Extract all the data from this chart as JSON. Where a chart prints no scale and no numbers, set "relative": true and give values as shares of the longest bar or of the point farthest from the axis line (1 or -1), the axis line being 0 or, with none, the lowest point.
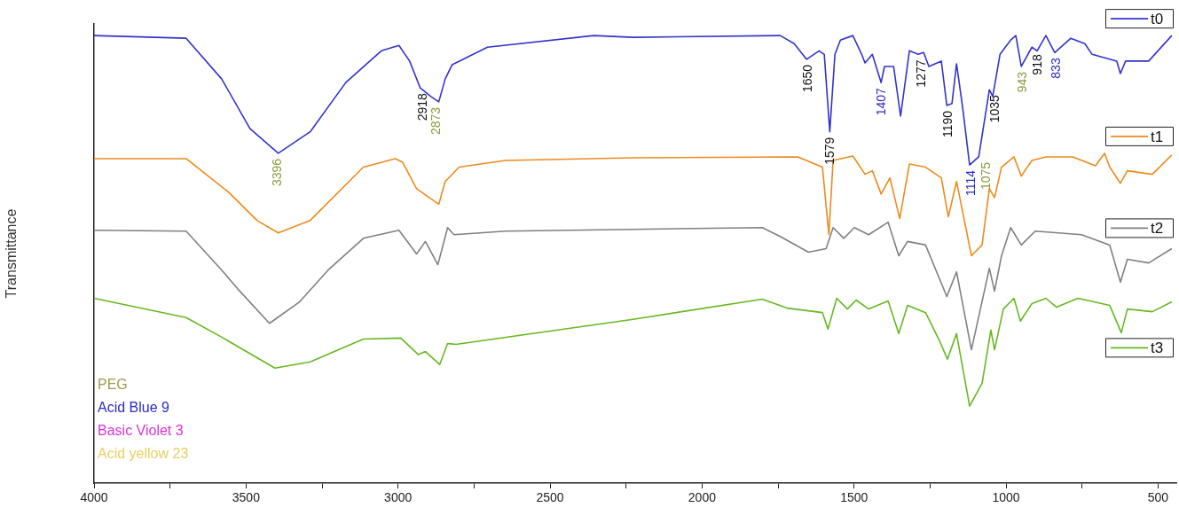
{
  "chart_data": {
    "type": "line",
    "relative": true,
    "ylabel": "Transmittance",
    "xlim": [
      4000,
      440
    ],
    "xticks": [
      4000,
      {
        "value": 3750,
        "label": null
      },
      3500,
      {
        "value": 3250,
        "label": null
      },
      3000,
      {
        "value": 2750,
        "label": null
      },
      2500,
      {
        "value": 2250,
        "label": null
      },
      2000,
      {
        "value": 1750,
        "label": null
      },
      1500,
      {
        "value": 1250,
        "label": null
      },
      1000,
      {
        "value": 750,
        "label": null
      },
      500
    ],
    "legend": "right",
    "marker": "none",
    "line_style": "solid",
    "grid": false,
    "series": [
      {
        "name": "t0",
        "color": "#3333cc",
        "x": [
          4000,
          3697,
          3580,
          3487,
          3394,
          3289,
          3172,
          3055,
          2997,
          2962,
          2927,
          2892,
          2866,
          2845,
          2822,
          2706,
          2356,
          2227,
          1743,
          1697,
          1656,
          1615,
          1598,
          1580,
          1563,
          1545,
          1504,
          1475,
          1464,
          1440,
          1411,
          1400,
          1370,
          1347,
          1318,
          1289,
          1271,
          1254,
          1213,
          1195,
          1178,
          1163,
          1143,
          1120,
          1090,
          1055,
          1044,
          1020,
          985,
          968,
          950,
          915,
          898,
          869,
          840,
          787,
          741,
          717,
          636,
          624,
          607,
          531,
          455
        ],
        "values": [
          1.0,
          0.994,
          0.903,
          0.792,
          0.737,
          0.785,
          0.895,
          0.966,
          0.978,
          0.943,
          0.883,
          0.864,
          0.852,
          0.903,
          0.935,
          0.974,
          1.0,
          0.996,
          1.0,
          0.982,
          0.947,
          0.966,
          0.958,
          0.785,
          0.958,
          0.99,
          1.0,
          0.958,
          0.939,
          0.958,
          0.895,
          0.931,
          0.931,
          0.82,
          0.966,
          0.958,
          0.962,
          0.931,
          0.943,
          0.844,
          0.848,
          0.937,
          0.84,
          0.711,
          0.729,
          0.879,
          0.864,
          0.958,
          0.99,
          1.0,
          0.931,
          0.974,
          0.966,
          1.0,
          0.962,
          0.994,
          0.982,
          0.958,
          0.943,
          0.915,
          0.943,
          0.943,
          1.0
        ]
      },
      {
        "name": "t1",
        "color": "#ee8a1c",
        "x": [
          4000,
          3697,
          3557,
          3464,
          3394,
          3289,
          3114,
          3009,
          2985,
          2939,
          2866,
          2845,
          2799,
          2647,
          2227,
          1685,
          1604,
          1583,
          1569,
          1504,
          1464,
          1440,
          1411,
          1382,
          1350,
          1318,
          1265,
          1213,
          1190,
          1163,
          1114,
          1079,
          1055,
          1038,
          1015,
          974,
          950,
          915,
          869,
          781,
          706,
          676,
          659,
          624,
          601,
          519,
          455
        ],
        "values": [
          0.725,
          0.725,
          0.65,
          0.587,
          0.559,
          0.587,
          0.706,
          0.725,
          0.717,
          0.658,
          0.623,
          0.674,
          0.706,
          0.721,
          0.727,
          0.729,
          0.706,
          0.555,
          0.721,
          0.731,
          0.69,
          0.698,
          0.646,
          0.682,
          0.591,
          0.713,
          0.706,
          0.682,
          0.595,
          0.674,
          0.508,
          0.532,
          0.658,
          0.638,
          0.706,
          0.729,
          0.686,
          0.721,
          0.729,
          0.729,
          0.709,
          0.737,
          0.706,
          0.67,
          0.698,
          0.69,
          0.733
        ]
      },
      {
        "name": "t2",
        "color": "#808080",
        "x": [
          4000,
          3697,
          3580,
          3522,
          3423,
          3324,
          3230,
          3114,
          2997,
          2939,
          2910,
          2869,
          2837,
          2816,
          2647,
          2227,
          1802,
          1743,
          1650,
          1592,
          1569,
          1534,
          1499,
          1452,
          1388,
          1353,
          1324,
          1265,
          1195,
          1163,
          1114,
          1055,
          1038,
          1015,
          985,
          950,
          904,
          752,
          659,
          624,
          601,
          531,
          455
        ],
        "values": [
          0.565,
          0.563,
          0.476,
          0.43,
          0.357,
          0.405,
          0.476,
          0.547,
          0.565,
          0.512,
          0.54,
          0.488,
          0.571,
          0.555,
          0.563,
          0.567,
          0.571,
          0.551,
          0.516,
          0.524,
          0.571,
          0.547,
          0.571,
          0.555,
          0.583,
          0.508,
          0.54,
          0.532,
          0.417,
          0.472,
          0.298,
          0.48,
          0.429,
          0.508,
          0.571,
          0.532,
          0.563,
          0.555,
          0.532,
          0.449,
          0.5,
          0.492,
          0.524
        ]
      },
      {
        "name": "t3",
        "color": "#66b822",
        "x": [
          4000,
          3697,
          3580,
          3405,
          3289,
          3114,
          2991,
          2933,
          2910,
          2863,
          2837,
          2810,
          2227,
          1802,
          1720,
          1604,
          1586,
          1557,
          1522,
          1493,
          1452,
          1388,
          1353,
          1324,
          1265,
          1219,
          1193,
          1163,
          1120,
          1079,
          1050,
          1038,
          1009,
          974,
          953,
          915,
          869,
          834,
          764,
          659,
          621,
          601,
          519,
          455
        ],
        "values": [
          0.413,
          0.37,
          0.326,
          0.257,
          0.271,
          0.322,
          0.324,
          0.287,
          0.294,
          0.265,
          0.312,
          0.31,
          0.366,
          0.411,
          0.391,
          0.381,
          0.344,
          0.413,
          0.389,
          0.409,
          0.389,
          0.407,
          0.334,
          0.397,
          0.381,
          0.318,
          0.277,
          0.334,
          0.172,
          0.223,
          0.342,
          0.298,
          0.389,
          0.413,
          0.362,
          0.401,
          0.413,
          0.393,
          0.413,
          0.397,
          0.336,
          0.389,
          0.383,
          0.405
        ]
      }
    ],
    "annotations": [
      {
        "text": "3396",
        "x": 3396,
        "y": 0.737
      },
      {
        "text": "2918",
        "x": 2918,
        "y": 0.883
      },
      {
        "text": "2873",
        "x": 2873,
        "y": 0.852
      },
      {
        "text": "1650",
        "x": 1650,
        "y": 0.947
      },
      {
        "text": "1579",
        "x": 1579,
        "y": 0.785
      },
      {
        "text": "1407",
        "x": 1407,
        "y": 0.895
      },
      {
        "text": "1277",
        "x": 1277,
        "y": 0.958
      },
      {
        "text": "1190",
        "x": 1190,
        "y": 0.844
      },
      {
        "text": "1114",
        "x": 1114,
        "y": 0.711
      },
      {
        "text": "1075",
        "x": 1075,
        "y": 0.729
      },
      {
        "text": "1035",
        "x": 1035,
        "y": 0.879
      },
      {
        "text": "943",
        "x": 943,
        "y": 0.931
      },
      {
        "text": "918",
        "x": 918,
        "y": 0.97
      },
      {
        "text": "833",
        "x": 833,
        "y": 0.962
      },
      "PEG",
      "Acid Blue 9",
      "Basic Violet 3",
      "Acid yellow 23"
    ]
  }
}
